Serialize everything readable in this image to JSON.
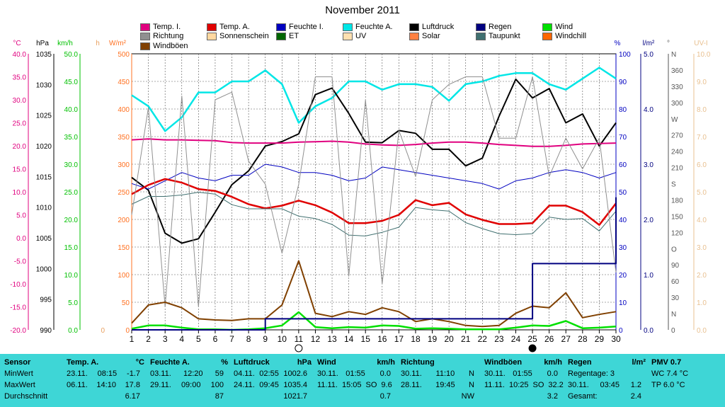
{
  "title": "November 2011",
  "axis_units": {
    "temp": "°C",
    "pressure": "hPa",
    "wind": "km/h",
    "rain_h": "h",
    "solar": "W/m²",
    "humidity": "%",
    "rain": "l/m²",
    "direction": "°",
    "uv": "UV-I"
  },
  "legend": [
    {
      "label": "Temp. I.",
      "color": "#e0007f"
    },
    {
      "label": "Temp. A.",
      "color": "#e00000"
    },
    {
      "label": "Feuchte I.",
      "color": "#0000c0"
    },
    {
      "label": "Feuchte A.",
      "color": "#00e6e6"
    },
    {
      "label": "Luftdruck",
      "color": "#000000"
    },
    {
      "label": "Regen",
      "color": "#000080"
    },
    {
      "label": "Wind",
      "color": "#00e000"
    },
    {
      "label": "Richtung",
      "color": "#909090"
    },
    {
      "label": "Sonnenschein",
      "color": "#ffd8a0"
    },
    {
      "label": "ET",
      "color": "#006600"
    },
    {
      "label": "UV",
      "color": "#ffe0b0"
    },
    {
      "label": "Solar",
      "color": "#ff8040"
    },
    {
      "label": "Taupunkt",
      "color": "#407070"
    },
    {
      "label": "Windchill",
      "color": "#ff6600"
    },
    {
      "label": "Windböen",
      "color": "#804000"
    }
  ],
  "chart_data": {
    "type": "line",
    "title": "November 2011",
    "x": [
      1,
      2,
      3,
      4,
      5,
      6,
      7,
      8,
      9,
      10,
      11,
      12,
      13,
      14,
      15,
      16,
      17,
      18,
      19,
      20,
      21,
      22,
      23,
      24,
      25,
      26,
      27,
      28,
      29,
      30
    ],
    "axes": {
      "temp": {
        "range": [
          -20,
          40
        ],
        "ticks": [
          "-20.0",
          "-15.0",
          "-10.0",
          "-5.0",
          "0.0",
          "5.0",
          "10.0",
          "15.0",
          "20.0",
          "25.0",
          "30.0",
          "35.0",
          "40.0"
        ]
      },
      "pressure": {
        "range": [
          990,
          1040
        ],
        "ticks": [
          "990",
          "995",
          "1000",
          "1005",
          "1010",
          "1015",
          "1020",
          "1025",
          "1030",
          "1035"
        ]
      },
      "wind": {
        "range": [
          0,
          50
        ],
        "ticks": [
          "0.0",
          "5.0",
          "10.0",
          "15.0",
          "20.0",
          "25.0",
          "30.0",
          "35.0",
          "40.0",
          "45.0",
          "50.0"
        ]
      },
      "solar": {
        "range": [
          0,
          500
        ],
        "ticks": [
          "0",
          "50",
          "100",
          "150",
          "200",
          "250",
          "300",
          "350",
          "400",
          "450",
          "500"
        ]
      },
      "humidity": {
        "range": [
          0,
          100
        ],
        "ticks": [
          "0",
          "10",
          "20",
          "30",
          "40",
          "50",
          "60",
          "70",
          "80",
          "90",
          "100"
        ]
      },
      "rain": {
        "range": [
          0,
          5
        ],
        "ticks": [
          "0.0",
          "1.0",
          "2.0",
          "3.0",
          "4.0",
          "5.0"
        ]
      },
      "direction": {
        "range": [
          0,
          360
        ],
        "ticks": [
          "0",
          "N",
          "30",
          "60",
          "90",
          "O",
          "120",
          "150",
          "180",
          "S",
          "210",
          "240",
          "270",
          "W",
          "300",
          "330",
          "360",
          "N"
        ]
      },
      "uv": {
        "range": [
          0,
          10
        ],
        "ticks": [
          "0.0",
          "1.0",
          "2.0",
          "3.0",
          "4.0",
          "5.0",
          "6.0",
          "7.0",
          "8.0",
          "9.0",
          "10.0"
        ]
      },
      "hours": {
        "ticks": [
          "0"
        ]
      }
    },
    "series": [
      {
        "name": "Feuchte A.",
        "axis": "humidity",
        "color": "#00e6e6",
        "width": 2.5,
        "values": [
          85,
          81,
          72,
          77,
          86,
          86,
          90,
          90,
          94,
          89,
          75,
          81,
          84,
          90,
          90,
          87,
          89,
          89,
          88,
          83,
          89,
          90,
          92,
          93,
          93,
          89,
          87,
          91,
          95,
          91
        ]
      },
      {
        "name": "Luftdruck",
        "axis": "pressure",
        "color": "#000000",
        "width": 2,
        "values": [
          1017.6,
          1015.3,
          1007.5,
          1005.7,
          1006.5,
          1011.3,
          1016.3,
          1018.8,
          1023.3,
          1024.1,
          1025.5,
          1032.6,
          1033.8,
          1029.2,
          1024.0,
          1023.9,
          1026.1,
          1025.6,
          1022.7,
          1022.7,
          1019.7,
          1021.1,
          1028.7,
          1035.4,
          1032.0,
          1033.7,
          1027.5,
          1029.1,
          1023.3,
          1027.5
        ]
      },
      {
        "name": "Temp. I.",
        "axis": "temp",
        "color": "#e0007f",
        "width": 2,
        "values": [
          21.3,
          21.5,
          21.3,
          21.3,
          21.2,
          21.1,
          20.7,
          20.6,
          20.6,
          20.6,
          20.8,
          20.9,
          21.0,
          20.8,
          20.4,
          20.2,
          20.1,
          20.3,
          20.6,
          20.8,
          20.8,
          20.6,
          20.3,
          20.1,
          19.9,
          19.9,
          20.1,
          20.4,
          20.5,
          20.6
        ]
      },
      {
        "name": "Feuchte I.",
        "axis": "humidity",
        "color": "#0000c0",
        "width": 1,
        "values": [
          53,
          51,
          54,
          57,
          55,
          54,
          56,
          56,
          60,
          59,
          57,
          57,
          56,
          54,
          55,
          59,
          58,
          57,
          56,
          55,
          54,
          53,
          51,
          54,
          55,
          57,
          58,
          57,
          55,
          57
        ]
      },
      {
        "name": "Temp. A.",
        "axis": "temp",
        "color": "#e00000",
        "width": 2.5,
        "values": [
          9.5,
          11.5,
          12.8,
          12.0,
          10.6,
          10.2,
          8.9,
          7.3,
          6.4,
          7.0,
          8.1,
          7.1,
          5.5,
          3.2,
          3.2,
          3.7,
          5.0,
          8.2,
          7.1,
          7.6,
          5.1,
          3.9,
          3.0,
          3.0,
          3.2,
          7.0,
          7.0,
          5.6,
          2.8,
          7.5
        ]
      },
      {
        "name": "Taupunkt",
        "axis": "temp",
        "color": "#407070",
        "width": 1,
        "values": [
          7.3,
          9.0,
          9.0,
          9.3,
          9.9,
          9.5,
          7.2,
          6.3,
          6.3,
          6.3,
          4.7,
          4.2,
          2.9,
          0.6,
          0.4,
          1.2,
          2.3,
          6.6,
          6.1,
          5.8,
          3.3,
          2.0,
          0.9,
          0.7,
          0.9,
          4.5,
          4.0,
          4.2,
          1.5,
          5.8
        ]
      },
      {
        "name": "Richtung",
        "axis": "direction",
        "color": "#909090",
        "width": 1,
        "values": [
          150,
          290,
          30,
          305,
          30,
          300,
          310,
          220,
          190,
          100,
          190,
          330,
          330,
          70,
          300,
          60,
          260,
          200,
          300,
          320,
          330,
          330,
          250,
          250,
          330,
          200,
          250,
          210,
          250,
          75
        ]
      },
      {
        "name": "Windböen",
        "axis": "wind",
        "color": "#804000",
        "width": 2,
        "values": [
          1.2,
          4.5,
          5.0,
          4.0,
          2.0,
          1.8,
          1.7,
          2.0,
          2.0,
          4.5,
          12.5,
          3.0,
          2.4,
          3.3,
          2.8,
          4.0,
          3.3,
          1.5,
          2.0,
          1.5,
          0.8,
          0.6,
          0.8,
          3.0,
          4.3,
          4.0,
          6.7,
          2.2,
          2.8,
          3.3
        ]
      },
      {
        "name": "Wind",
        "axis": "wind",
        "color": "#00e000",
        "width": 2.5,
        "values": [
          0.2,
          0.8,
          0.8,
          0.4,
          0.1,
          0.1,
          0.0,
          0.1,
          0.3,
          0.8,
          3.2,
          0.5,
          0.3,
          0.5,
          0.4,
          0.8,
          0.7,
          0.2,
          0.3,
          0.2,
          0.1,
          0.1,
          0.1,
          0.4,
          0.8,
          0.7,
          1.6,
          0.3,
          0.4,
          0.6
        ]
      },
      {
        "name": "Regen",
        "axis": "rain",
        "color": "#000080",
        "width": 2,
        "step": true,
        "values": [
          0,
          0,
          0,
          0,
          0,
          0,
          0,
          0,
          0.2,
          0.2,
          0.2,
          0.2,
          0.2,
          0.2,
          0.2,
          0.2,
          0.2,
          0.2,
          0.2,
          0.2,
          0.2,
          0.2,
          0.2,
          0.2,
          1.2,
          1.2,
          1.2,
          1.2,
          1.2,
          2.4
        ]
      }
    ],
    "moon_markers": [
      {
        "day": 11,
        "phase": "full-moon"
      },
      {
        "day": 25,
        "phase": "new-moon"
      }
    ]
  },
  "table": {
    "columns": [
      {
        "header": "Sensor",
        "rows": [
          "MinWert",
          "MaxWert",
          "Durchschnitt"
        ]
      },
      {
        "header": "Temp. A.",
        "unit": "°C",
        "rows": [
          [
            "23.11.",
            "08:15",
            "-1.7"
          ],
          [
            "06.11.",
            "14:10",
            "17.8"
          ],
          [
            "",
            "",
            "6.17"
          ]
        ]
      },
      {
        "header": "Feuchte A.",
        "unit": "%",
        "rows": [
          [
            "03.11.",
            "12:20",
            "59"
          ],
          [
            "29.11.",
            "09:00",
            "100"
          ],
          [
            "",
            "",
            "87"
          ]
        ]
      },
      {
        "header": "Luftdruck",
        "unit": "hPa",
        "rows": [
          [
            "04.11.",
            "02:55",
            "1002.6"
          ],
          [
            "24.11.",
            "09:45",
            "1035.4"
          ],
          [
            "",
            "",
            "1021.7"
          ]
        ]
      },
      {
        "header": "Wind",
        "unit": "km/h",
        "rows": [
          [
            "30.11.",
            "01:55",
            "",
            "0.0"
          ],
          [
            "11.11.",
            "15:05",
            "SO",
            "9.6"
          ],
          [
            "",
            "",
            "",
            "0.7"
          ]
        ]
      },
      {
        "header": "Richtung",
        "unit": "",
        "rows": [
          [
            "30.11.",
            "11:10",
            "N"
          ],
          [
            "28.11.",
            "19:45",
            "N"
          ],
          [
            "",
            "",
            "NW"
          ]
        ]
      },
      {
        "header": "Windböen",
        "unit": "km/h",
        "rows": [
          [
            "30.11.",
            "01:55",
            "",
            "0.0"
          ],
          [
            "11.11.",
            "10:25",
            "SO",
            "32.2"
          ],
          [
            "",
            "",
            "",
            "3.2"
          ]
        ]
      },
      {
        "header": "Regen",
        "unit": "l/m²",
        "rows": [
          [
            "Regentage: 3",
            ""
          ],
          [
            "30.11.",
            "03:45",
            "1.2"
          ],
          [
            "Gesamt:",
            "2.4"
          ]
        ]
      },
      {
        "header": "PMV 0.7",
        "unit": "",
        "rows": [
          "WC 7.4 °C",
          "TP 6.0 °C"
        ]
      }
    ]
  }
}
